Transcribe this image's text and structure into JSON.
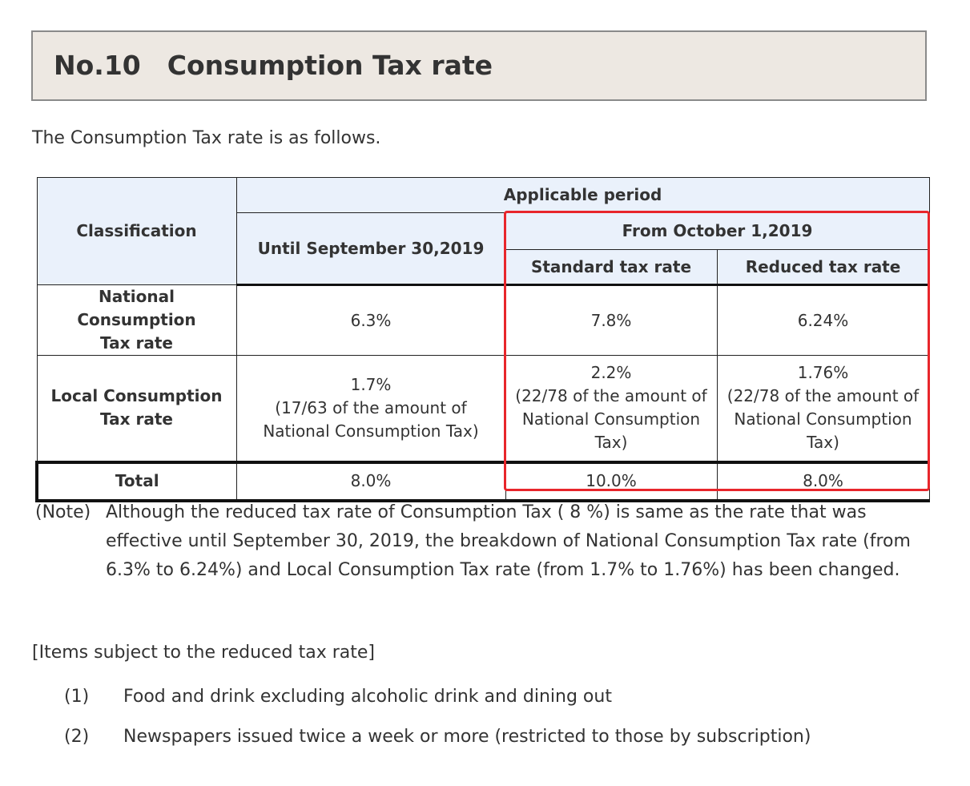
{
  "title": "No.10　Consumption Tax rate",
  "intro": "The Consumption Tax rate is as follows.",
  "table": {
    "headers": {
      "classification": "Classification",
      "applicable_period": "Applicable period",
      "until": "Until September 30,2019",
      "from": "From October 1,2019",
      "standard": "Standard tax rate",
      "reduced": "Reduced tax rate"
    },
    "rows": [
      {
        "label_line1": "National Consumption",
        "label_line2": "Tax rate",
        "until": [
          "6.3%"
        ],
        "standard": [
          "7.8%"
        ],
        "reduced": [
          "6.24%"
        ]
      },
      {
        "label_line1": "Local Consumption",
        "label_line2": "Tax rate",
        "until": [
          "1.7%",
          "(17/63 of the amount of",
          "National Consumption Tax)"
        ],
        "standard": [
          "2.2%",
          "(22/78 of the amount of",
          "National Consumption",
          "Tax)"
        ],
        "reduced": [
          "1.76%",
          "(22/78 of the amount of",
          "National Consumption",
          "Tax)"
        ]
      }
    ],
    "total": {
      "label": "Total",
      "until": "8.0%",
      "standard": "10.0%",
      "reduced": "8.0%"
    },
    "highlight_color": "#e8262b",
    "header_bg": "#eaf1fb"
  },
  "note": {
    "label": "(Note)",
    "text": "Although the reduced tax rate of Consumption Tax ( 8 %) is same as the rate that was effective until September 30, 2019, the breakdown of National Consumption Tax rate (from 6.3% to 6.24%) and Local Consumption Tax rate (from 1.7% to 1.76%) has been changed."
  },
  "items": {
    "heading": "[Items subject to the reduced tax rate]",
    "list": [
      {
        "num": "(1)",
        "text": "Food and drink excluding alcoholic drink and dining out"
      },
      {
        "num": "(2)",
        "text": "Newspapers issued twice a week or more (restricted to those by subscription)"
      }
    ]
  }
}
